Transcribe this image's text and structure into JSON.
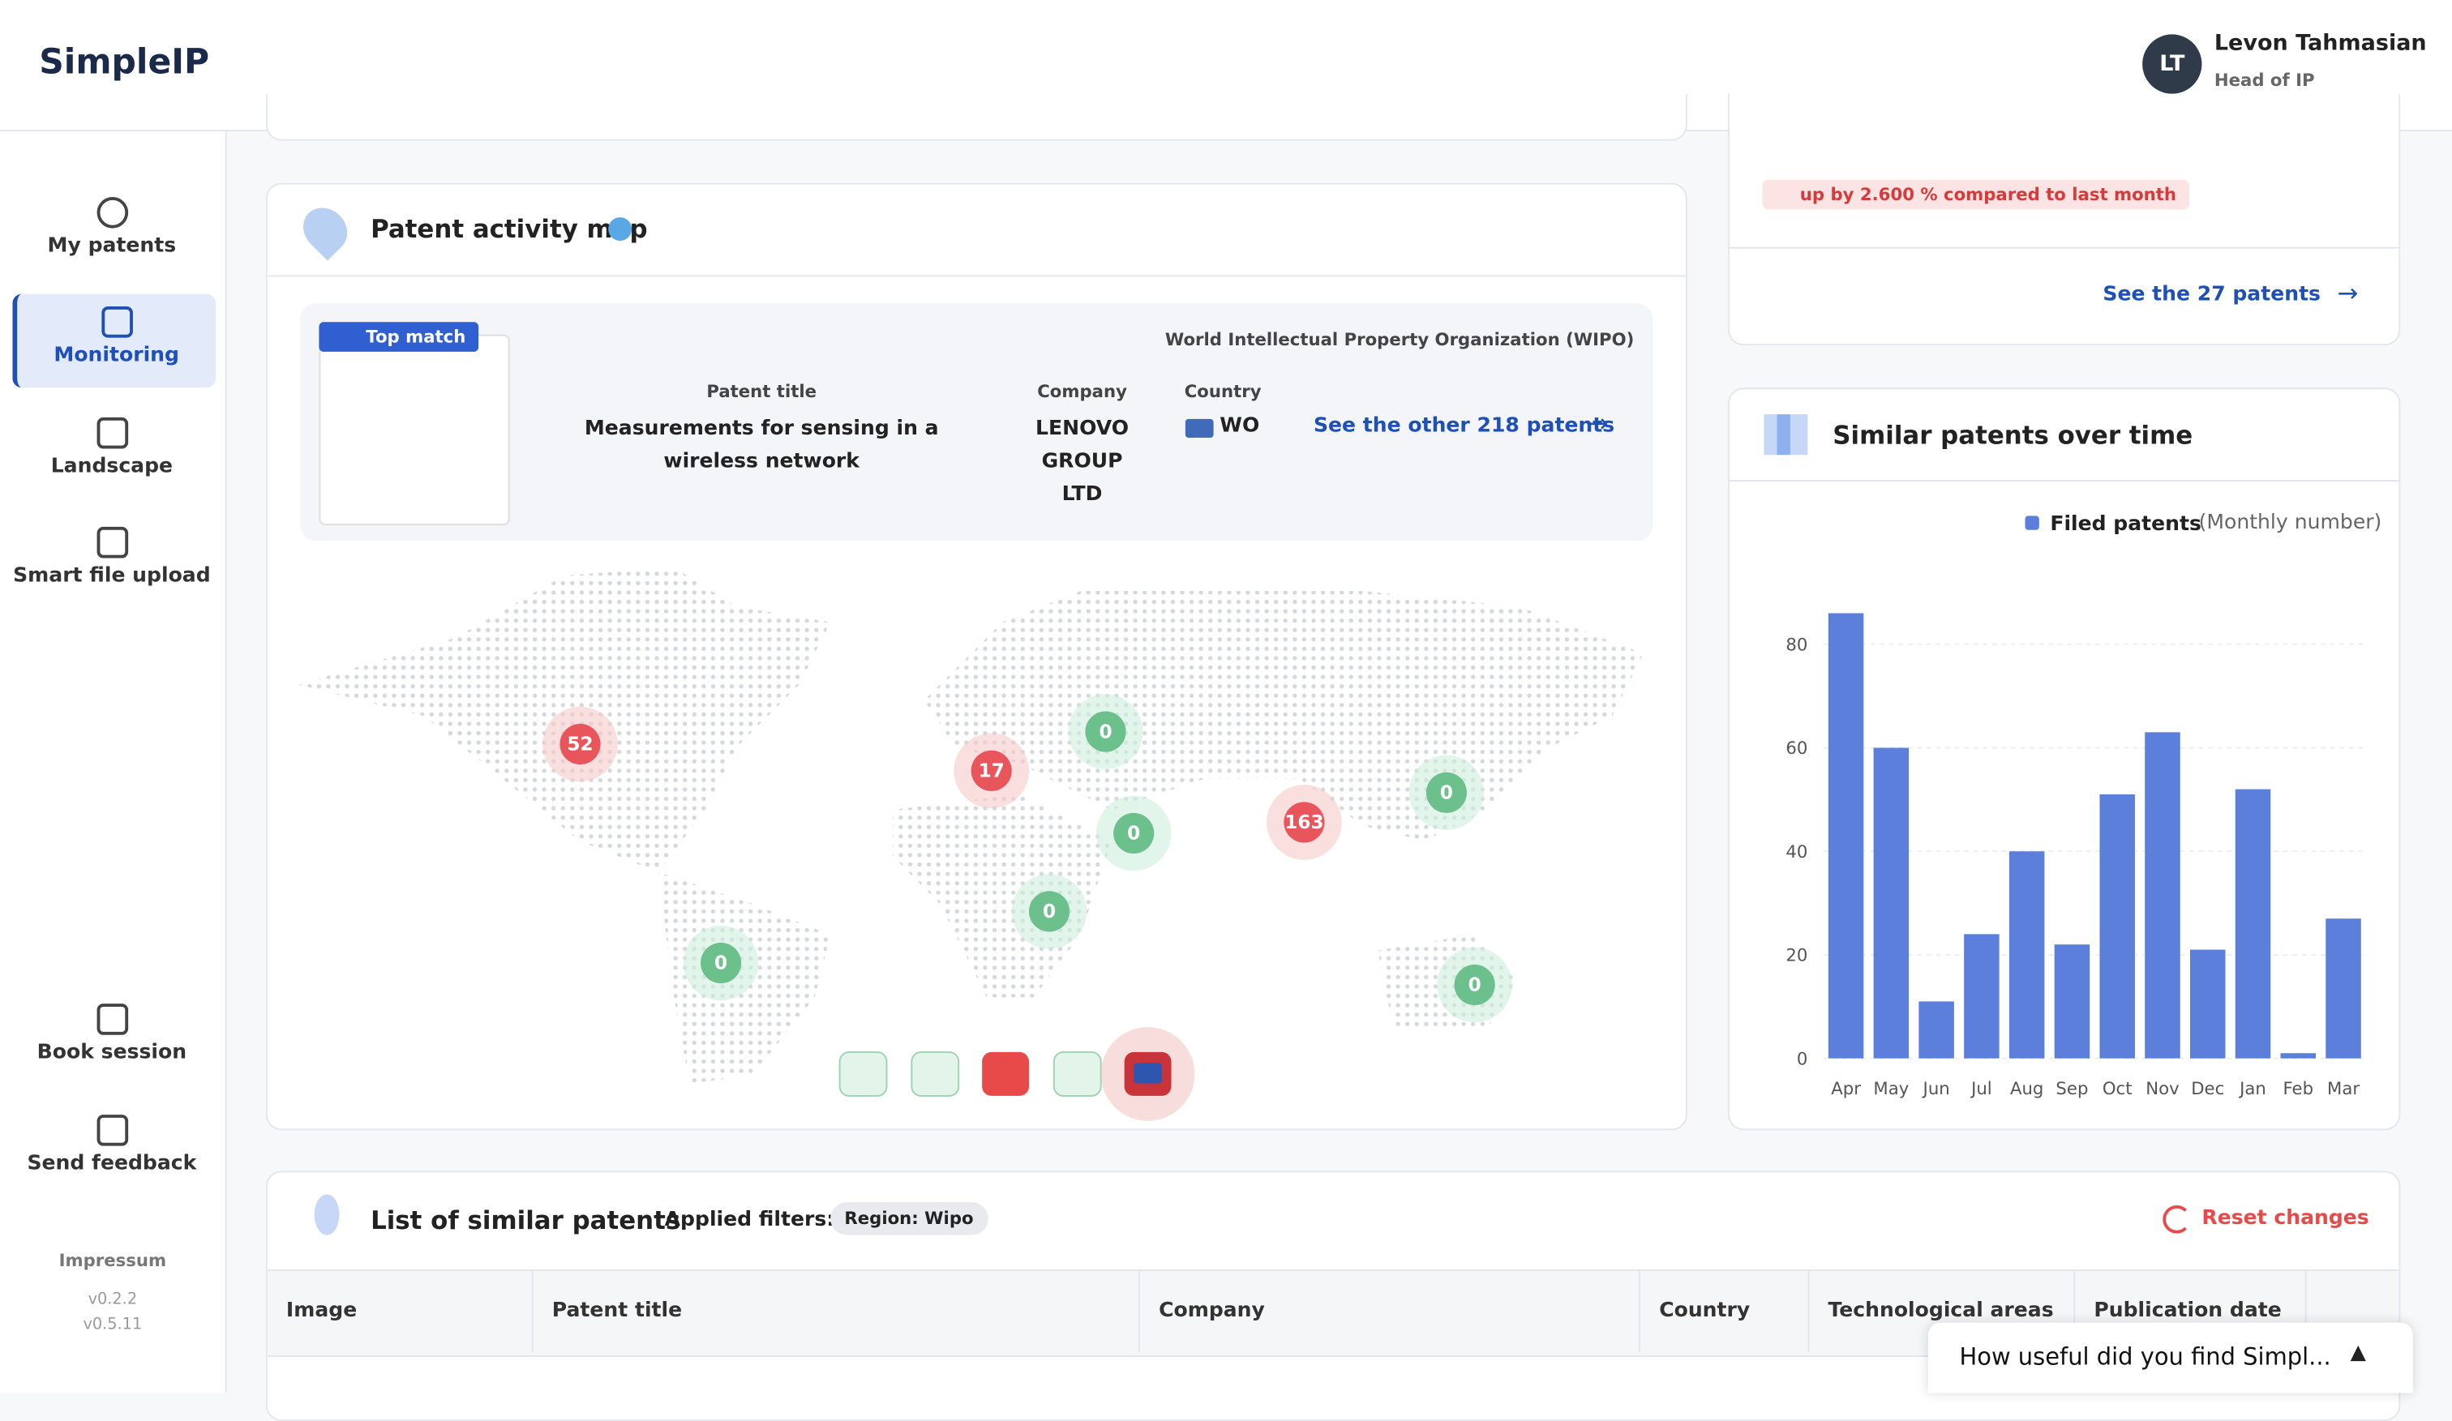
{
  "header": {
    "logo": "SimpleIP",
    "user_initials": "LT",
    "user_name": "Levon Tahmasian",
    "user_role": "Head of IP"
  },
  "sidebar": {
    "items": [
      "My patents",
      "Monitoring",
      "Landscape",
      "Smart file upload"
    ],
    "bottom": [
      "Book session",
      "Send feedback"
    ],
    "impressum": "Impressum",
    "versions": [
      "v0.2.2",
      "v0.5.11"
    ]
  },
  "stats_card": {
    "trend": "up by 2.600 % compared to last month",
    "link": "See the 27 patents"
  },
  "map_card": {
    "title": "Patent activity map",
    "badge": "Top match",
    "office": "World Intellectual Property Organization (WIPO)",
    "labels": [
      "Patent title",
      "Company",
      "Country"
    ],
    "patent_title": "Measurements for sensing in a wireless network",
    "company": "LENOVO GROUP LTD",
    "country": "WO",
    "link": "See the other 218 patents",
    "markers": [
      52,
      17,
      0,
      0,
      0,
      163,
      0,
      0,
      0
    ]
  },
  "chart_card": {
    "title": "Similar patents over time",
    "unit": "(Monthly number)"
  },
  "chart_data": {
    "type": "bar",
    "categories": [
      "Apr",
      "May",
      "Jun",
      "Jul",
      "Aug",
      "Sep",
      "Oct",
      "Nov",
      "Dec",
      "Jan",
      "Feb",
      "Mar"
    ],
    "series": [
      {
        "name": "Filed patents",
        "color": "#5b7fdb",
        "values": [
          86,
          60,
          11,
          24,
          40,
          22,
          51,
          63,
          21,
          52,
          1,
          27
        ]
      }
    ],
    "ylim": [
      0,
      90
    ],
    "yticks": [
      0,
      20,
      40,
      60,
      80
    ],
    "grid": true
  },
  "list_card": {
    "title": "List of similar patents",
    "filters_label": "Applied filters:",
    "filter": "Region: Wipo",
    "reset": "Reset changes",
    "columns": [
      "Image",
      "Patent title",
      "Company",
      "Country",
      "Technological areas",
      "Publication date"
    ]
  },
  "feedback": "How useful did you find Simpl..."
}
